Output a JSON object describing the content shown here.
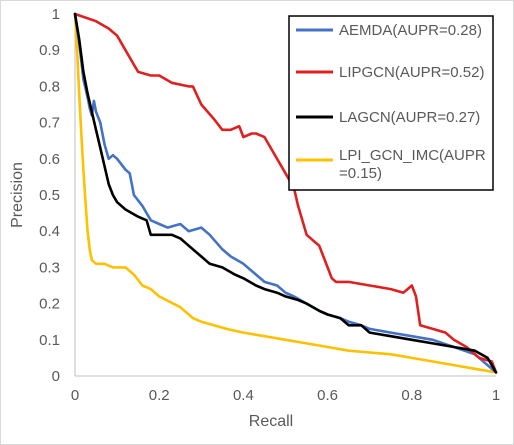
{
  "chart_data": {
    "type": "line",
    "xlabel": "Recall",
    "ylabel": "Precision",
    "xlim": [
      0,
      1
    ],
    "ylim": [
      0,
      1
    ],
    "x_ticks": [
      "0",
      "0.2",
      "0.4",
      "0.6",
      "0.8",
      "1"
    ],
    "y_ticks": [
      "0",
      "0.1",
      "0.2",
      "0.3",
      "0.4",
      "0.5",
      "0.6",
      "0.7",
      "0.8",
      "0.9",
      "1"
    ],
    "grid": false,
    "legend_position": "top-right",
    "series": [
      {
        "name": "AEMDA(AUPR=0.28)",
        "color": "#4472C4",
        "points": [
          [
            0,
            1
          ],
          [
            0.01,
            0.92
          ],
          [
            0.02,
            0.82
          ],
          [
            0.03,
            0.77
          ],
          [
            0.035,
            0.74
          ],
          [
            0.04,
            0.72
          ],
          [
            0.045,
            0.76
          ],
          [
            0.05,
            0.73
          ],
          [
            0.06,
            0.7
          ],
          [
            0.07,
            0.64
          ],
          [
            0.08,
            0.6
          ],
          [
            0.09,
            0.61
          ],
          [
            0.1,
            0.6
          ],
          [
            0.12,
            0.57
          ],
          [
            0.13,
            0.56
          ],
          [
            0.14,
            0.5
          ],
          [
            0.16,
            0.47
          ],
          [
            0.17,
            0.45
          ],
          [
            0.18,
            0.43
          ],
          [
            0.2,
            0.42
          ],
          [
            0.22,
            0.41
          ],
          [
            0.25,
            0.42
          ],
          [
            0.27,
            0.4
          ],
          [
            0.3,
            0.41
          ],
          [
            0.32,
            0.39
          ],
          [
            0.35,
            0.35
          ],
          [
            0.37,
            0.33
          ],
          [
            0.4,
            0.31
          ],
          [
            0.42,
            0.29
          ],
          [
            0.45,
            0.26
          ],
          [
            0.48,
            0.25
          ],
          [
            0.5,
            0.23
          ],
          [
            0.52,
            0.22
          ],
          [
            0.55,
            0.2
          ],
          [
            0.58,
            0.18
          ],
          [
            0.6,
            0.17
          ],
          [
            0.63,
            0.16
          ],
          [
            0.65,
            0.15
          ],
          [
            0.68,
            0.14
          ],
          [
            0.7,
            0.13
          ],
          [
            0.75,
            0.12
          ],
          [
            0.8,
            0.11
          ],
          [
            0.85,
            0.1
          ],
          [
            0.9,
            0.08
          ],
          [
            0.95,
            0.06
          ],
          [
            1,
            0.01
          ]
        ]
      },
      {
        "name": "LIPGCN(AUPR=0.52)",
        "color": "#E02020",
        "points": [
          [
            0,
            1
          ],
          [
            0.05,
            0.98
          ],
          [
            0.08,
            0.96
          ],
          [
            0.1,
            0.94
          ],
          [
            0.12,
            0.9
          ],
          [
            0.14,
            0.86
          ],
          [
            0.15,
            0.84
          ],
          [
            0.18,
            0.83
          ],
          [
            0.2,
            0.83
          ],
          [
            0.23,
            0.81
          ],
          [
            0.27,
            0.8
          ],
          [
            0.28,
            0.8
          ],
          [
            0.3,
            0.75
          ],
          [
            0.33,
            0.71
          ],
          [
            0.35,
            0.68
          ],
          [
            0.37,
            0.68
          ],
          [
            0.39,
            0.69
          ],
          [
            0.4,
            0.66
          ],
          [
            0.42,
            0.67
          ],
          [
            0.43,
            0.67
          ],
          [
            0.45,
            0.66
          ],
          [
            0.47,
            0.62
          ],
          [
            0.5,
            0.56
          ],
          [
            0.52,
            0.52
          ],
          [
            0.53,
            0.47
          ],
          [
            0.55,
            0.39
          ],
          [
            0.57,
            0.37
          ],
          [
            0.58,
            0.36
          ],
          [
            0.59,
            0.33
          ],
          [
            0.6,
            0.3
          ],
          [
            0.61,
            0.27
          ],
          [
            0.62,
            0.26
          ],
          [
            0.65,
            0.26
          ],
          [
            0.7,
            0.25
          ],
          [
            0.75,
            0.24
          ],
          [
            0.78,
            0.23
          ],
          [
            0.8,
            0.25
          ],
          [
            0.81,
            0.22
          ],
          [
            0.82,
            0.14
          ],
          [
            0.85,
            0.13
          ],
          [
            0.88,
            0.12
          ],
          [
            0.9,
            0.1
          ],
          [
            0.93,
            0.08
          ],
          [
            0.96,
            0.05
          ],
          [
            0.99,
            0.04
          ],
          [
            1,
            0.01
          ]
        ]
      },
      {
        "name": "LAGCN(AUPR=0.27)",
        "color": "#000000",
        "points": [
          [
            0,
            1
          ],
          [
            0.01,
            0.93
          ],
          [
            0.02,
            0.84
          ],
          [
            0.03,
            0.78
          ],
          [
            0.04,
            0.73
          ],
          [
            0.05,
            0.68
          ],
          [
            0.06,
            0.63
          ],
          [
            0.07,
            0.58
          ],
          [
            0.08,
            0.53
          ],
          [
            0.09,
            0.5
          ],
          [
            0.1,
            0.48
          ],
          [
            0.12,
            0.46
          ],
          [
            0.15,
            0.44
          ],
          [
            0.17,
            0.43
          ],
          [
            0.18,
            0.39
          ],
          [
            0.2,
            0.39
          ],
          [
            0.23,
            0.39
          ],
          [
            0.25,
            0.38
          ],
          [
            0.27,
            0.36
          ],
          [
            0.3,
            0.33
          ],
          [
            0.32,
            0.31
          ],
          [
            0.35,
            0.3
          ],
          [
            0.38,
            0.28
          ],
          [
            0.4,
            0.27
          ],
          [
            0.43,
            0.25
          ],
          [
            0.45,
            0.24
          ],
          [
            0.48,
            0.23
          ],
          [
            0.5,
            0.22
          ],
          [
            0.53,
            0.21
          ],
          [
            0.55,
            0.2
          ],
          [
            0.58,
            0.18
          ],
          [
            0.6,
            0.17
          ],
          [
            0.63,
            0.16
          ],
          [
            0.65,
            0.14
          ],
          [
            0.68,
            0.14
          ],
          [
            0.7,
            0.12
          ],
          [
            0.75,
            0.11
          ],
          [
            0.8,
            0.1
          ],
          [
            0.85,
            0.09
          ],
          [
            0.9,
            0.08
          ],
          [
            0.95,
            0.07
          ],
          [
            0.98,
            0.05
          ],
          [
            1,
            0.01
          ]
        ]
      },
      {
        "name": "LPI_GCN_IMC(AUPR=0.15)",
        "color": "#FFC000",
        "points": [
          [
            0,
            1
          ],
          [
            0.005,
            0.9
          ],
          [
            0.01,
            0.78
          ],
          [
            0.015,
            0.67
          ],
          [
            0.02,
            0.57
          ],
          [
            0.025,
            0.48
          ],
          [
            0.03,
            0.4
          ],
          [
            0.035,
            0.35
          ],
          [
            0.04,
            0.32
          ],
          [
            0.05,
            0.31
          ],
          [
            0.07,
            0.31
          ],
          [
            0.09,
            0.3
          ],
          [
            0.12,
            0.3
          ],
          [
            0.14,
            0.28
          ],
          [
            0.16,
            0.25
          ],
          [
            0.18,
            0.24
          ],
          [
            0.2,
            0.22
          ],
          [
            0.25,
            0.19
          ],
          [
            0.28,
            0.16
          ],
          [
            0.3,
            0.15
          ],
          [
            0.33,
            0.14
          ],
          [
            0.36,
            0.13
          ],
          [
            0.4,
            0.12
          ],
          [
            0.45,
            0.11
          ],
          [
            0.5,
            0.1
          ],
          [
            0.55,
            0.09
          ],
          [
            0.6,
            0.08
          ],
          [
            0.65,
            0.07
          ],
          [
            0.7,
            0.065
          ],
          [
            0.75,
            0.06
          ],
          [
            0.8,
            0.05
          ],
          [
            0.85,
            0.04
          ],
          [
            0.9,
            0.03
          ],
          [
            0.95,
            0.02
          ],
          [
            1,
            0.01
          ]
        ]
      }
    ],
    "legend_labels": [
      [
        "AEMDA(AUPR=0.28)"
      ],
      [
        "LIPGCN(AUPR=0.52)"
      ],
      [
        "LAGCN(AUPR=0.27)"
      ],
      [
        "LPI_GCN_IMC(AUPR",
        "=0.15)"
      ]
    ]
  }
}
